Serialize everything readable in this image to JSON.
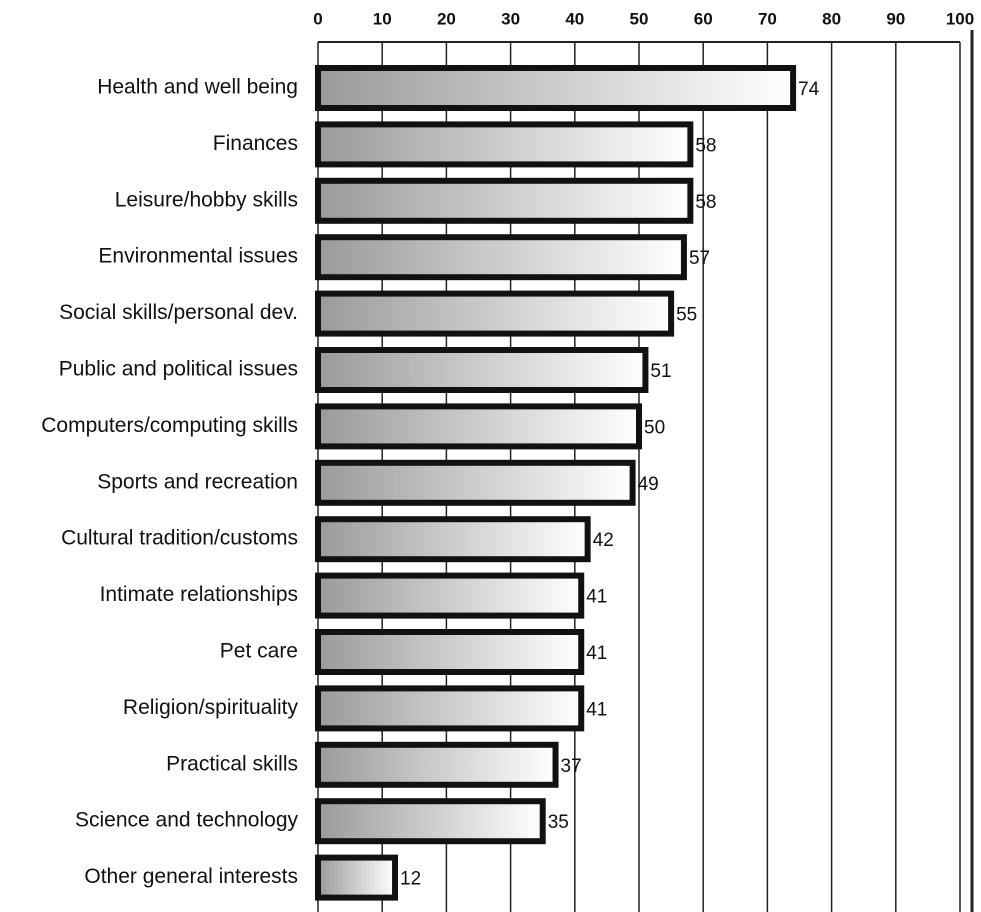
{
  "chart_data": {
    "type": "bar",
    "orientation": "horizontal",
    "categories": [
      "Health and well being",
      "Finances",
      "Leisure/hobby skills",
      "Environmental issues",
      "Social skills/personal dev.",
      "Public and political issues",
      "Computers/computing skills",
      "Sports and recreation",
      "Cultural tradition/customs",
      "Intimate relationships",
      "Pet care",
      "Religion/spirituality",
      "Practical skills",
      "Science and technology",
      "Other general interests"
    ],
    "values": [
      74,
      58,
      58,
      57,
      55,
      51,
      50,
      49,
      42,
      41,
      41,
      41,
      37,
      35,
      12
    ],
    "color": "#a8a8a8",
    "xlim": [
      0,
      100
    ],
    "xticks": [
      0,
      10,
      20,
      30,
      40,
      50,
      60,
      70,
      80,
      90,
      100
    ],
    "grid": true
  }
}
